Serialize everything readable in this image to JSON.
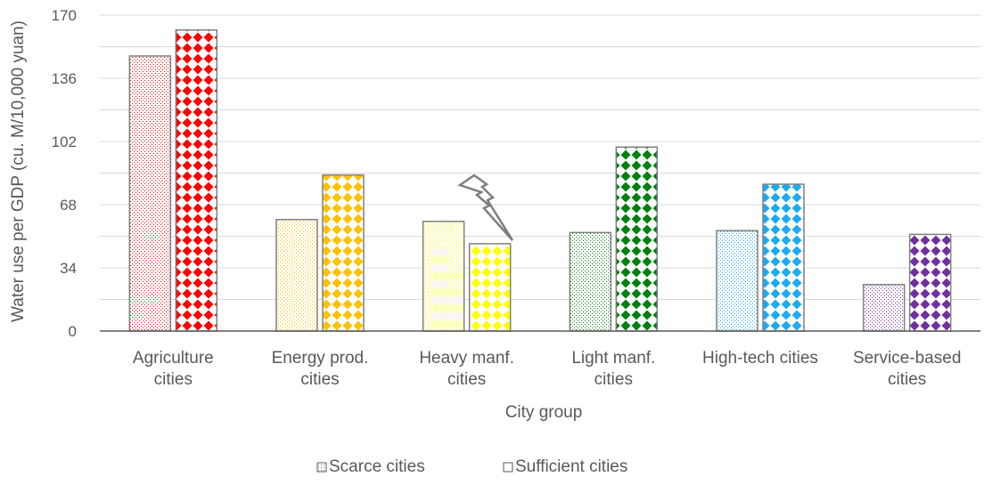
{
  "chart_data": {
    "type": "bar",
    "title": "",
    "xlabel": "City group",
    "ylabel": "Water use per GDP (cu. M/10,000 yuan)",
    "ylim": [
      0,
      170
    ],
    "yticks": [
      0,
      34,
      68,
      102,
      136,
      170
    ],
    "grid": true,
    "legend_position": "bottom",
    "categories": [
      [
        "Agriculture",
        "cities"
      ],
      [
        "Energy prod.",
        "cities"
      ],
      [
        "Heavy manf.",
        "cities"
      ],
      [
        "Light manf.",
        "cities"
      ],
      [
        "High-tech cities"
      ],
      [
        "Service-based",
        "cities"
      ]
    ],
    "category_colors": [
      "#ff0000",
      "#ffc000",
      "#ffff00",
      "#00800f",
      "#1eaaf1",
      "#7030a0"
    ],
    "series": [
      {
        "name": "Scarce cities",
        "pattern": "dots",
        "values": [
          148,
          60,
          59,
          53,
          54,
          25
        ]
      },
      {
        "name": "Sufficient cities",
        "pattern": "diamonds",
        "values": [
          162,
          84,
          47,
          99,
          79,
          52
        ]
      }
    ],
    "annotations": [
      {
        "type": "lightning-bolt-icon",
        "category": "Heavy manf.",
        "note": ""
      }
    ]
  }
}
